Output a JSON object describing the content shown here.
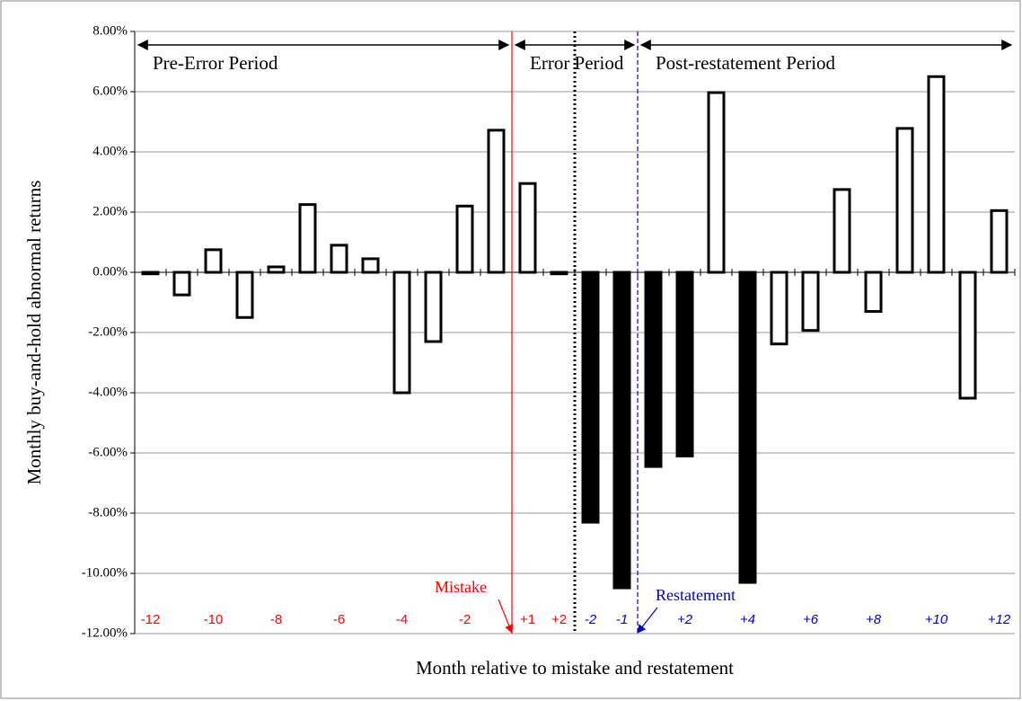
{
  "chart_data": {
    "type": "bar",
    "y_label": "Monthly buy-and-hold abnormal returns",
    "x_label": "Month relative to mistake and restatement",
    "categories": [
      "-12",
      null,
      "-10",
      null,
      "-8",
      null,
      "-6",
      null,
      "-4",
      null,
      "-2",
      null,
      "+1",
      "+2",
      "-2",
      "-1",
      null,
      "+2",
      null,
      "+4",
      null,
      "+6",
      null,
      "+8",
      null,
      "+10",
      null,
      "+12"
    ],
    "values": [
      -0.05,
      -0.75,
      0.75,
      -1.5,
      0.18,
      2.25,
      0.9,
      0.45,
      -4.0,
      -2.3,
      2.2,
      4.72,
      2.95,
      -0.05,
      -8.3,
      -10.48,
      -6.45,
      -6.1,
      5.97,
      -10.3,
      -2.38,
      -1.93,
      2.75,
      -1.3,
      4.78,
      6.5,
      -4.18,
      2.05
    ],
    "fills": [
      "#fff",
      "#fff",
      "#fff",
      "#fff",
      "#fff",
      "#fff",
      "#fff",
      "#fff",
      "#fff",
      "#fff",
      "#fff",
      "#fff",
      "#fff",
      "#fff",
      "#000",
      "#000",
      "#000",
      "#000",
      "#fff",
      "#000",
      "#fff",
      "#fff",
      "#fff",
      "#fff",
      "#fff",
      "#fff",
      "#fff",
      "#fff"
    ],
    "label_colors": [
      "#ff0000",
      "#ff0000",
      "#ff0000",
      "#ff0000",
      "#ff0000",
      "#ff0000",
      "#ff0000",
      "#ff0000",
      "#ff0000",
      "#ff0000",
      "#ff0000",
      "#ff0000",
      "#ff0000",
      "#ff0000",
      "#0000cc",
      "#0000cc",
      "#0000cc",
      "#0000cc",
      "#0000cc",
      "#0000cc",
      "#0000cc",
      "#0000cc",
      "#0000cc",
      "#0000cc",
      "#0000cc",
      "#0000cc",
      "#0000cc",
      "#0000cc"
    ],
    "ylim": [
      -12,
      8
    ],
    "yticks": [
      {
        "value": -12,
        "label": "-12.00%"
      },
      {
        "value": -10,
        "label": "-10.00%"
      },
      {
        "value": -8,
        "label": "-8.00%"
      },
      {
        "value": -6,
        "label": "-6.00%"
      },
      {
        "value": -4,
        "label": "-4.00%"
      },
      {
        "value": -2,
        "label": "-2.00%"
      },
      {
        "value": 0,
        "label": "0.00%"
      },
      {
        "value": 2,
        "label": "2.00%"
      },
      {
        "value": 4,
        "label": "4.00%"
      },
      {
        "value": 6,
        "label": "6.00%"
      },
      {
        "value": 8,
        "label": "8.00%"
      }
    ],
    "grid": true,
    "markers": [
      {
        "label": "Mistake",
        "after": 12,
        "color": "#ff0000",
        "style": "solid",
        "label_side": "left"
      },
      {
        "after": 14,
        "color": "#000000",
        "style": "dotted"
      },
      {
        "label": "Restatement",
        "after": 16,
        "color": "#0000cc",
        "style": "dashed",
        "label_side": "right"
      }
    ],
    "periods": [
      {
        "label": "Pre-Error Period",
        "from": 0,
        "to": 12
      },
      {
        "label": "Error Period",
        "from": 12,
        "to": 16
      },
      {
        "label": "Post-restatement Period",
        "from": 16,
        "to": 28
      }
    ]
  }
}
